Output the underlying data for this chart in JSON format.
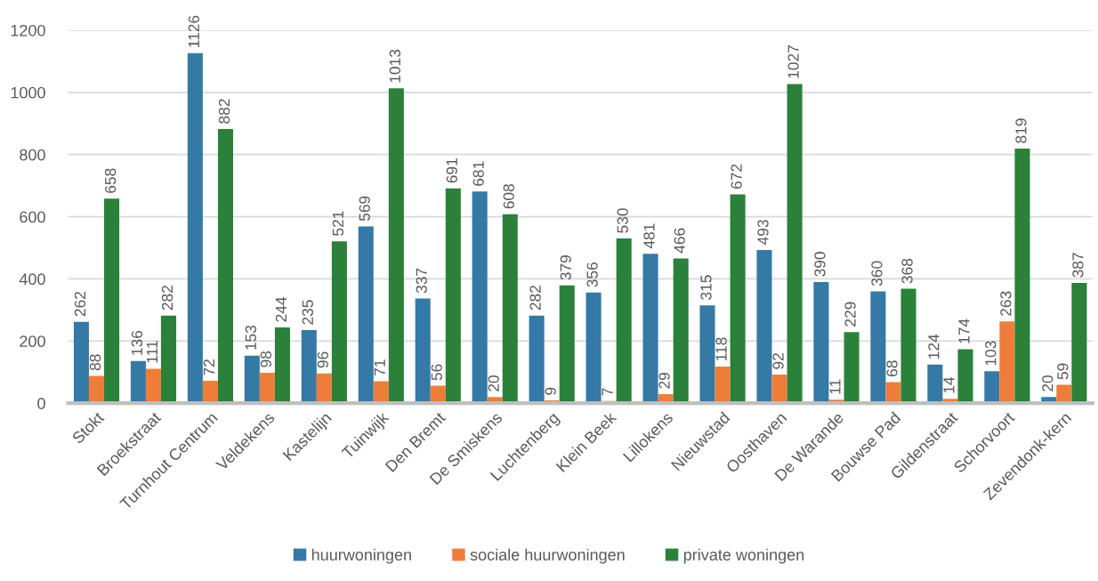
{
  "chart_data": {
    "type": "bar",
    "categories": [
      "Stokt",
      "Broekstraat",
      "Turnhout Centrum",
      "Veldekens",
      "Kastelijn",
      "Tuinwijk",
      "Den Bremt",
      "De Smiskens",
      "Luchtenberg",
      "Klein Beek",
      "Lillokens",
      "Nieuwstad",
      "Oosthaven",
      "De Warande",
      "Bouwse Pad",
      "Gildenstraat",
      "Schorvoort",
      "Zevendonk-kern"
    ],
    "series": [
      {
        "name": "huurwoningen",
        "color": "#3579a6",
        "values": [
          262,
          136,
          1126,
          153,
          235,
          569,
          337,
          681,
          282,
          356,
          481,
          315,
          493,
          390,
          360,
          124,
          103,
          20
        ]
      },
      {
        "name": "sociale huurwoningen",
        "color": "#ef7d3a",
        "values": [
          88,
          111,
          72,
          98,
          96,
          71,
          56,
          20,
          9,
          7,
          29,
          118,
          92,
          11,
          68,
          14,
          263,
          59
        ]
      },
      {
        "name": "private woningen",
        "color": "#2b8139",
        "values": [
          658,
          282,
          882,
          244,
          521,
          1013,
          691,
          608,
          379,
          530,
          466,
          672,
          1027,
          229,
          368,
          174,
          819,
          387
        ]
      }
    ],
    "ylim": [
      0,
      1200
    ],
    "yticks": [
      0,
      200,
      400,
      600,
      800,
      1000,
      1200
    ],
    "grid": "y",
    "legend": "bottom",
    "data_labels": true
  }
}
